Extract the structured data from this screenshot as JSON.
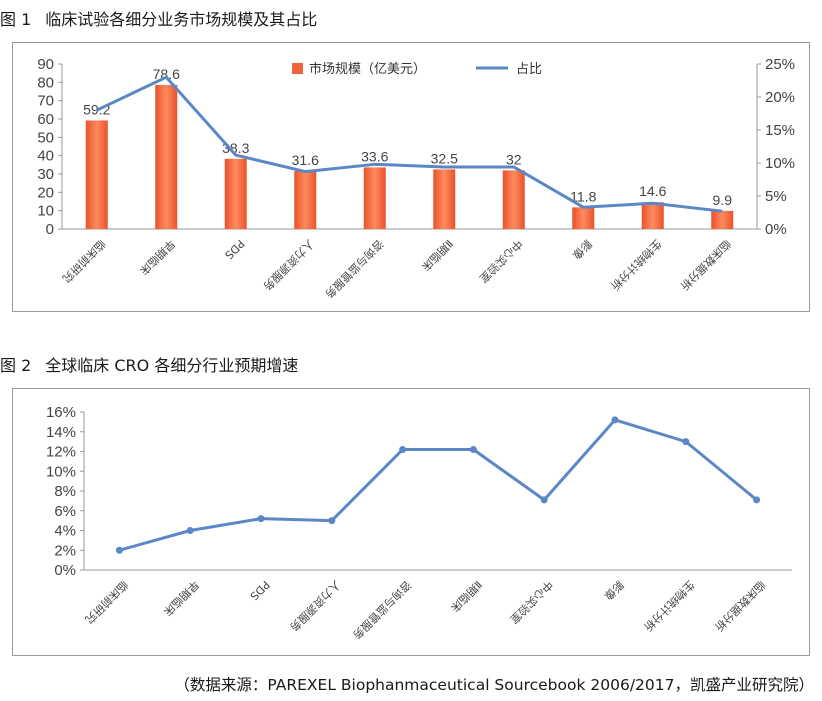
{
  "figure1": {
    "number": "图 1",
    "title": "临床试验各细分业务市场规模及其占比"
  },
  "figure2": {
    "number": "图 2",
    "title": "全球临床 CRO 各细分行业预期增速"
  },
  "source_note": "（数据来源：PAREXEL Biophanmaceutical Sourcebook 2006/2017，凯盛产业研究院）",
  "colors": {
    "bar": "#f0643c",
    "line": "#5b87c5"
  },
  "chart_data": [
    {
      "type": "bar",
      "categories": [
        "临床前研究",
        "早期临床",
        "PDS",
        "人力资源服务",
        "咨询与监管服务",
        "Ⅱ期临床",
        "中心实验室",
        "影像",
        "生物统计分析",
        "临床数据分析"
      ],
      "series": [
        {
          "name": "市场规模（亿美元）",
          "type": "bar",
          "axis": "left",
          "values": [
            59.2,
            78.6,
            38.3,
            31.6,
            33.6,
            32.5,
            32,
            11.8,
            14.6,
            9.9
          ],
          "labels": [
            "59.2",
            "78.6",
            "38.3",
            "31.6",
            "33.6",
            "32.5",
            "32",
            "11.8",
            "14.6",
            "9.9"
          ]
        },
        {
          "name": "占比",
          "type": "line",
          "axis": "right",
          "values": [
            0.18,
            0.23,
            0.112,
            0.087,
            0.098,
            0.094,
            0.094,
            0.033,
            0.039,
            0.027
          ]
        }
      ],
      "ylim": [
        0,
        90
      ],
      "yticks": [
        "0",
        "10",
        "20",
        "30",
        "40",
        "50",
        "60",
        "70",
        "80",
        "90"
      ],
      "y2lim": [
        0,
        0.25
      ],
      "y2ticks": [
        "0%",
        "5%",
        "10%",
        "15%",
        "20%",
        "25%"
      ],
      "legend": "top-center",
      "grid": false
    },
    {
      "type": "line",
      "categories": [
        "临床前研究",
        "早期临床",
        "PDS",
        "人力资源服务",
        "咨询与监管服务",
        "Ⅱ期临床",
        "中心实验室",
        "影像",
        "生物统计分析",
        "临床数据分析"
      ],
      "series": [
        {
          "values": [
            0.02,
            0.04,
            0.052,
            0.05,
            0.122,
            0.122,
            0.071,
            0.152,
            0.13,
            0.071
          ]
        }
      ],
      "ylim": [
        0,
        0.16
      ],
      "yticks": [
        "0%",
        "2%",
        "4%",
        "6%",
        "8%",
        "10%",
        "12%",
        "14%",
        "16%"
      ],
      "grid": false
    }
  ]
}
